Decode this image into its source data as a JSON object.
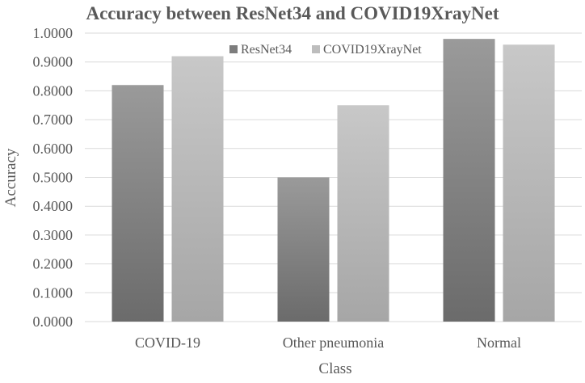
{
  "chart_data": {
    "type": "bar",
    "title": "Accuracy between ResNet34 and COVID19XrayNet",
    "xlabel": "Class",
    "ylabel": "Accuracy",
    "categories": [
      "COVID-19",
      "Other pneumonia",
      "Normal"
    ],
    "series": [
      {
        "name": "ResNet34",
        "values": [
          0.82,
          0.5,
          0.98
        ]
      },
      {
        "name": "COVID19XrayNet",
        "values": [
          0.92,
          0.75,
          0.96
        ]
      }
    ],
    "ylim": [
      0,
      1
    ],
    "yticks": [
      "0.0000",
      "0.1000",
      "0.2000",
      "0.3000",
      "0.4000",
      "0.5000",
      "0.6000",
      "0.7000",
      "0.8000",
      "0.9000",
      "1.0000"
    ],
    "grid": true,
    "legend_position": "top-right",
    "colors": {
      "ResNet34": [
        "#9a9a9a",
        "#6b6b6b"
      ],
      "COVID19XrayNet": [
        "#c8c8c8",
        "#a6a6a6"
      ]
    }
  }
}
